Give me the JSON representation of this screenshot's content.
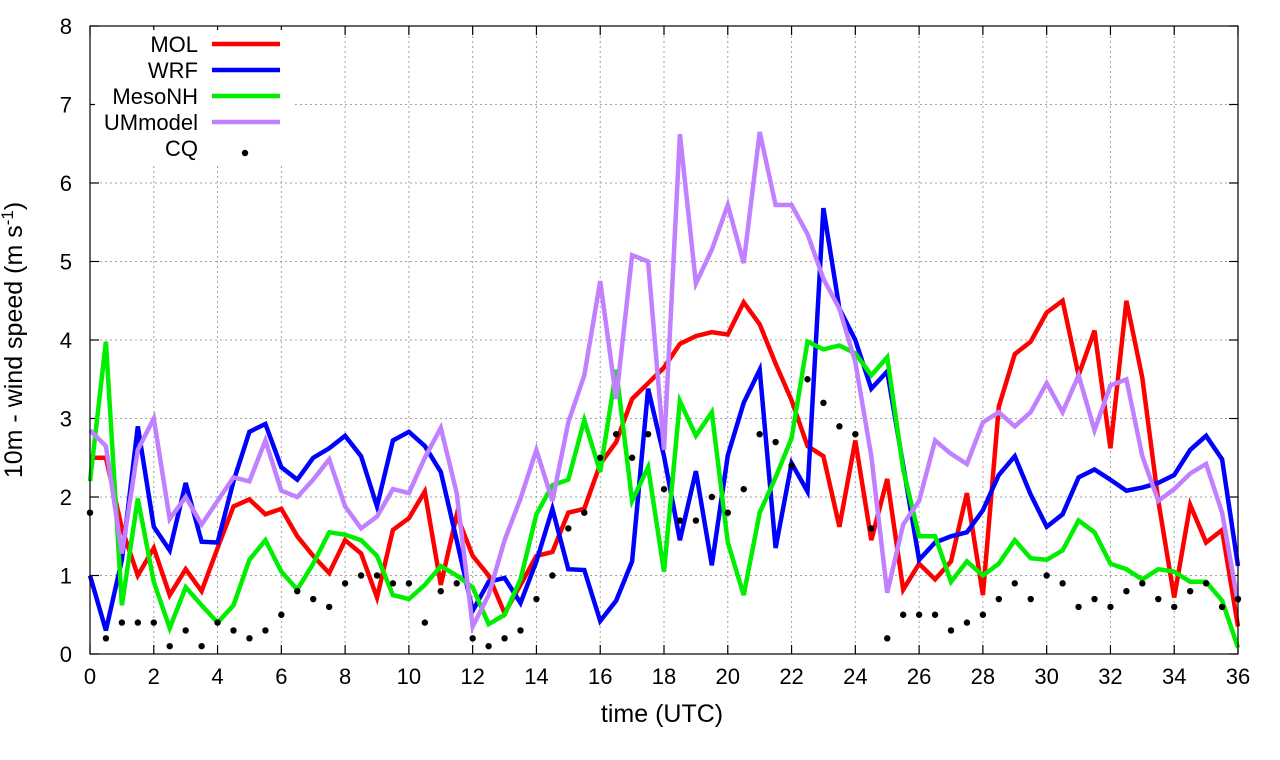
{
  "chart_data": {
    "type": "line",
    "title": "",
    "xlabel": "time (UTC)",
    "ylabel_main": "10m - wind speed  (m s",
    "ylabel_sup": "-1",
    "ylabel_close": ")",
    "xlim": [
      0,
      36
    ],
    "ylim": [
      0,
      8
    ],
    "xticks": [
      0,
      2,
      4,
      6,
      8,
      10,
      12,
      14,
      16,
      18,
      20,
      22,
      24,
      26,
      28,
      30,
      32,
      34,
      36
    ],
    "yticks": [
      0,
      1,
      2,
      3,
      4,
      5,
      6,
      7,
      8
    ],
    "grid": true,
    "legend_position": "top-left",
    "series": [
      {
        "name": "MOL",
        "color": "#ff0000",
        "style": "line",
        "x": [
          0,
          0.5,
          1,
          1.5,
          2,
          2.5,
          3,
          3.5,
          4,
          4.5,
          5,
          5.5,
          6,
          6.5,
          7,
          7.5,
          8,
          8.5,
          9,
          9.5,
          10,
          10.5,
          11,
          11.5,
          12,
          12.5,
          13,
          13.5,
          14,
          14.5,
          15,
          15.5,
          16,
          16.5,
          17,
          17.5,
          18,
          18.5,
          19,
          19.5,
          20,
          20.5,
          21,
          21.5,
          22,
          22.5,
          23,
          23.5,
          24,
          24.5,
          25,
          25.5,
          26,
          26.5,
          27,
          27.5,
          28,
          28.5,
          29,
          29.5,
          30,
          30.5,
          31,
          31.5,
          32,
          32.5,
          33,
          33.5,
          34,
          34.5,
          35,
          35.5,
          36
        ],
        "values": [
          2.5,
          2.5,
          1.6,
          1.0,
          1.35,
          0.75,
          1.08,
          0.8,
          1.35,
          1.88,
          1.97,
          1.78,
          1.85,
          1.5,
          1.25,
          1.03,
          1.45,
          1.28,
          0.72,
          1.58,
          1.73,
          2.07,
          0.88,
          1.77,
          1.25,
          1.0,
          0.52,
          0.88,
          1.25,
          1.3,
          1.8,
          1.85,
          2.42,
          2.7,
          3.25,
          3.45,
          3.65,
          3.95,
          4.05,
          4.1,
          4.07,
          4.48,
          4.2,
          3.7,
          3.23,
          2.65,
          2.52,
          1.62,
          2.72,
          1.45,
          2.23,
          0.82,
          1.15,
          0.95,
          1.18,
          2.05,
          0.75,
          3.15,
          3.82,
          3.98,
          4.35,
          4.5,
          3.55,
          4.12,
          2.62,
          4.5,
          3.52,
          1.95,
          0.72,
          1.9,
          1.42,
          1.58,
          0.35
        ]
      },
      {
        "name": "WRF",
        "color": "#0000ff",
        "style": "line",
        "x": [
          0,
          0.5,
          1,
          1.5,
          2,
          2.5,
          3,
          3.5,
          4,
          4.5,
          5,
          5.5,
          6,
          6.5,
          7,
          7.5,
          8,
          8.5,
          9,
          9.5,
          10,
          10.5,
          11,
          11.5,
          12,
          12.5,
          13,
          13.5,
          14,
          14.5,
          15,
          15.5,
          16,
          16.5,
          17,
          17.5,
          18,
          18.5,
          19,
          19.5,
          20,
          20.5,
          21,
          21.5,
          22,
          22.5,
          23,
          23.5,
          24,
          24.5,
          25,
          25.5,
          26,
          26.5,
          27,
          27.5,
          28,
          28.5,
          29,
          29.5,
          30,
          30.5,
          31,
          31.5,
          32,
          32.5,
          33,
          33.5,
          34,
          34.5,
          35,
          35.5,
          36
        ],
        "values": [
          1.0,
          0.3,
          1.2,
          2.9,
          1.62,
          1.32,
          2.18,
          1.43,
          1.42,
          2.2,
          2.83,
          2.93,
          2.38,
          2.22,
          2.5,
          2.62,
          2.78,
          2.52,
          1.88,
          2.72,
          2.83,
          2.65,
          2.32,
          1.45,
          0.55,
          0.92,
          0.97,
          0.65,
          1.18,
          1.85,
          1.08,
          1.07,
          0.42,
          0.68,
          1.18,
          3.38,
          2.52,
          1.45,
          2.33,
          1.13,
          2.53,
          3.2,
          3.62,
          1.35,
          2.43,
          2.07,
          5.68,
          4.4,
          4.0,
          3.38,
          3.6,
          2.4,
          1.2,
          1.42,
          1.5,
          1.55,
          1.83,
          2.28,
          2.52,
          2.03,
          1.62,
          1.78,
          2.25,
          2.35,
          2.22,
          2.08,
          2.12,
          2.18,
          2.28,
          2.6,
          2.78,
          2.48,
          1.12
        ]
      },
      {
        "name": "MesoNH",
        "color": "#00ee00",
        "style": "line",
        "x": [
          0,
          0.5,
          1,
          1.5,
          2,
          2.5,
          3,
          3.5,
          4,
          4.5,
          5,
          5.5,
          6,
          6.5,
          7,
          7.5,
          8,
          8.5,
          9,
          9.5,
          10,
          10.5,
          11,
          11.5,
          12,
          12.5,
          13,
          13.5,
          14,
          14.5,
          15,
          15.5,
          16,
          16.5,
          17,
          17.5,
          18,
          18.5,
          19,
          19.5,
          20,
          20.5,
          21,
          21.5,
          22,
          22.5,
          23,
          23.5,
          24,
          24.5,
          25,
          25.5,
          26,
          26.5,
          27,
          27.5,
          28,
          28.5,
          29,
          29.5,
          30,
          30.5,
          31,
          31.5,
          32,
          32.5,
          33,
          33.5,
          34,
          34.5,
          35,
          35.5,
          36
        ],
        "values": [
          2.2,
          3.98,
          0.62,
          1.98,
          0.92,
          0.33,
          0.85,
          0.62,
          0.4,
          0.62,
          1.2,
          1.45,
          1.05,
          0.82,
          1.15,
          1.55,
          1.52,
          1.45,
          1.25,
          0.75,
          0.7,
          0.88,
          1.12,
          1.0,
          0.85,
          0.38,
          0.5,
          0.95,
          1.78,
          2.15,
          2.22,
          2.98,
          2.32,
          3.62,
          1.95,
          2.38,
          1.05,
          3.22,
          2.78,
          3.08,
          1.42,
          0.75,
          1.8,
          2.25,
          2.75,
          3.98,
          3.88,
          3.93,
          3.83,
          3.55,
          3.78,
          2.35,
          1.5,
          1.5,
          0.92,
          1.18,
          1.0,
          1.15,
          1.45,
          1.22,
          1.2,
          1.32,
          1.7,
          1.55,
          1.15,
          1.08,
          0.95,
          1.08,
          1.05,
          0.92,
          0.92,
          0.68,
          0.08
        ]
      },
      {
        "name": "UMmodel",
        "color": "#c080ff",
        "style": "line",
        "x": [
          0,
          0.5,
          1,
          1.5,
          2,
          2.5,
          3,
          3.5,
          4,
          4.5,
          5,
          5.5,
          6,
          6.5,
          7,
          7.5,
          8,
          8.5,
          9,
          9.5,
          10,
          10.5,
          11,
          11.5,
          12,
          12.5,
          13,
          13.5,
          14,
          14.5,
          15,
          15.5,
          16,
          16.5,
          17,
          17.5,
          18,
          18.5,
          19,
          19.5,
          20,
          20.5,
          21,
          21.5,
          22,
          22.5,
          23,
          23.5,
          24,
          24.5,
          25,
          25.5,
          26,
          26.5,
          27,
          27.5,
          28,
          28.5,
          29,
          29.5,
          30,
          30.5,
          31,
          31.5,
          32,
          32.5,
          33,
          33.5,
          34,
          34.5,
          35,
          35.5,
          36
        ],
        "values": [
          2.85,
          2.65,
          1.28,
          2.6,
          3.0,
          1.72,
          2.0,
          1.65,
          1.95,
          2.25,
          2.2,
          2.72,
          2.08,
          2.0,
          2.22,
          2.48,
          1.88,
          1.6,
          1.75,
          2.1,
          2.05,
          2.5,
          2.88,
          2.05,
          0.35,
          0.75,
          1.45,
          1.98,
          2.6,
          1.95,
          2.95,
          3.55,
          4.75,
          3.25,
          5.08,
          5.0,
          2.6,
          6.62,
          4.72,
          5.15,
          5.72,
          4.98,
          6.65,
          5.72,
          5.72,
          5.35,
          4.78,
          4.4,
          3.72,
          2.52,
          0.78,
          1.65,
          1.95,
          2.72,
          2.55,
          2.42,
          2.95,
          3.08,
          2.9,
          3.08,
          3.45,
          3.08,
          3.55,
          2.85,
          3.42,
          3.5,
          2.52,
          1.95,
          2.1,
          2.3,
          2.42,
          1.8,
          0.65
        ]
      },
      {
        "name": "CQ",
        "color": "#000000",
        "style": "points",
        "x": [
          0,
          0.5,
          1,
          1.5,
          2,
          2.5,
          3,
          3.5,
          4,
          4.5,
          5,
          5.5,
          6,
          6.5,
          7,
          7.5,
          8,
          8.5,
          9,
          9.5,
          10,
          10.5,
          11,
          11.5,
          12,
          12.5,
          13,
          13.5,
          14,
          14.5,
          15,
          15.5,
          16,
          16.5,
          17,
          17.5,
          18,
          18.5,
          19,
          19.5,
          20,
          20.5,
          21,
          21.5,
          22,
          22.5,
          23,
          23.5,
          24,
          24.5,
          25,
          25.5,
          26,
          26.5,
          27,
          27.5,
          28,
          28.5,
          29,
          29.5,
          30,
          30.5,
          31,
          31.5,
          32,
          32.5,
          33,
          33.5,
          34,
          34.5,
          35,
          35.5,
          36
        ],
        "values": [
          1.8,
          0.2,
          0.4,
          0.4,
          0.4,
          0.1,
          0.3,
          0.1,
          0.4,
          0.3,
          0.2,
          0.3,
          0.5,
          0.8,
          0.7,
          0.6,
          0.9,
          1.0,
          1.0,
          0.9,
          0.9,
          0.4,
          0.8,
          0.9,
          0.2,
          0.1,
          0.2,
          0.3,
          0.7,
          1.0,
          1.6,
          1.8,
          2.5,
          2.8,
          2.5,
          2.8,
          2.1,
          1.7,
          1.7,
          2.0,
          1.8,
          2.1,
          2.8,
          2.7,
          2.4,
          3.5,
          3.2,
          2.9,
          2.8,
          1.6,
          0.2,
          0.5,
          0.5,
          0.5,
          0.3,
          0.4,
          0.5,
          0.7,
          0.9,
          0.7,
          1.0,
          0.9,
          0.6,
          0.7,
          0.6,
          0.8,
          0.9,
          0.7,
          0.6,
          0.8,
          0.9,
          0.6,
          0.7
        ]
      }
    ]
  }
}
